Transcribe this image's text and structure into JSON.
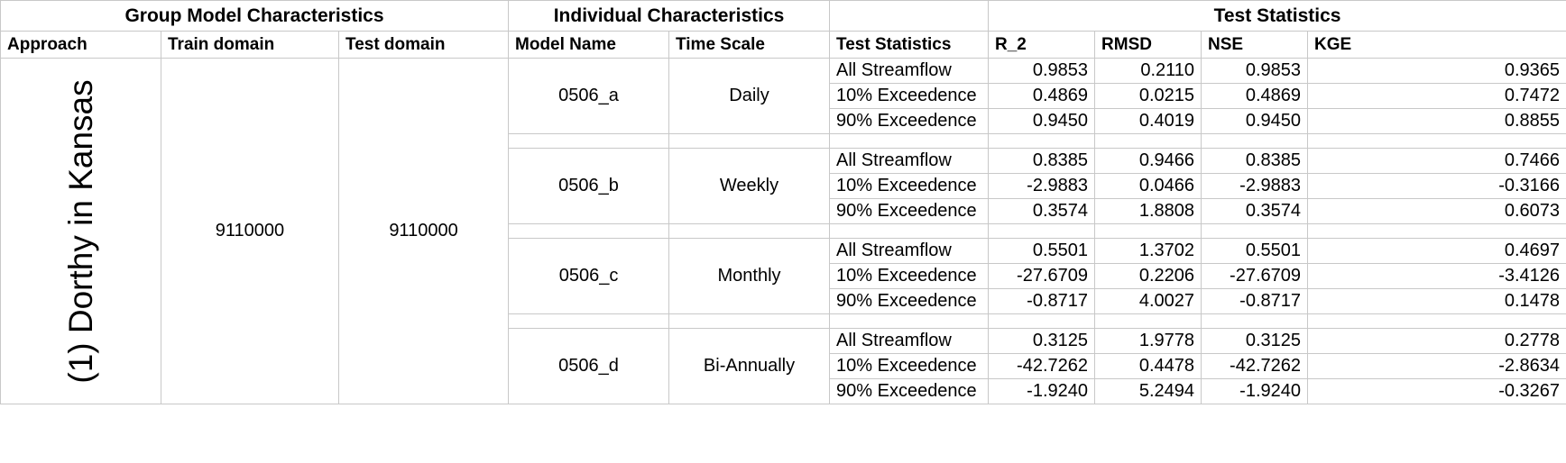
{
  "headers": {
    "group": "Group Model Characteristics",
    "individual": "Individual Characteristics",
    "blank": "",
    "test": "Test Statistics",
    "columns": [
      "Approach",
      "Train domain",
      "Test domain",
      "Model Name",
      "Time Scale",
      "Test Statistics",
      "R_2",
      "RMSD",
      "NSE",
      "KGE"
    ]
  },
  "approach": "(1) Dorthy in Kansas",
  "train_domain": "9110000",
  "test_domain": "9110000",
  "models": [
    {
      "name": "0506_a",
      "scale": "Daily",
      "rows": [
        {
          "stat": "All Streamflow",
          "r2": "0.9853",
          "rmsd": "0.2110",
          "nse": "0.9853",
          "kge": "0.9365"
        },
        {
          "stat": "10% Exceedence",
          "r2": "0.4869",
          "rmsd": "0.0215",
          "nse": "0.4869",
          "kge": "0.7472"
        },
        {
          "stat": "90% Exceedence",
          "r2": "0.9450",
          "rmsd": "0.4019",
          "nse": "0.9450",
          "kge": "0.8855"
        }
      ]
    },
    {
      "name": "0506_b",
      "scale": "Weekly",
      "rows": [
        {
          "stat": "All Streamflow",
          "r2": "0.8385",
          "rmsd": "0.9466",
          "nse": "0.8385",
          "kge": "0.7466"
        },
        {
          "stat": "10% Exceedence",
          "r2": "-2.9883",
          "rmsd": "0.0466",
          "nse": "-2.9883",
          "kge": "-0.3166"
        },
        {
          "stat": "90% Exceedence",
          "r2": "0.3574",
          "rmsd": "1.8808",
          "nse": "0.3574",
          "kge": "0.6073"
        }
      ]
    },
    {
      "name": "0506_c",
      "scale": "Monthly",
      "rows": [
        {
          "stat": "All Streamflow",
          "r2": "0.5501",
          "rmsd": "1.3702",
          "nse": "0.5501",
          "kge": "0.4697"
        },
        {
          "stat": "10% Exceedence",
          "r2": "-27.6709",
          "rmsd": "0.2206",
          "nse": "-27.6709",
          "kge": "-3.4126"
        },
        {
          "stat": "90% Exceedence",
          "r2": "-0.8717",
          "rmsd": "4.0027",
          "nse": "-0.8717",
          "kge": "0.1478"
        }
      ]
    },
    {
      "name": "0506_d",
      "scale": "Bi-Annually",
      "rows": [
        {
          "stat": "All Streamflow",
          "r2": "0.3125",
          "rmsd": "1.9778",
          "nse": "0.3125",
          "kge": "0.2778"
        },
        {
          "stat": "10% Exceedence",
          "r2": "-42.7262",
          "rmsd": "0.4478",
          "nse": "-42.7262",
          "kge": "-2.8634"
        },
        {
          "stat": "90% Exceedence",
          "r2": "-1.9240",
          "rmsd": "5.2494",
          "nse": "-1.9240",
          "kge": "-0.3267"
        }
      ]
    }
  ]
}
